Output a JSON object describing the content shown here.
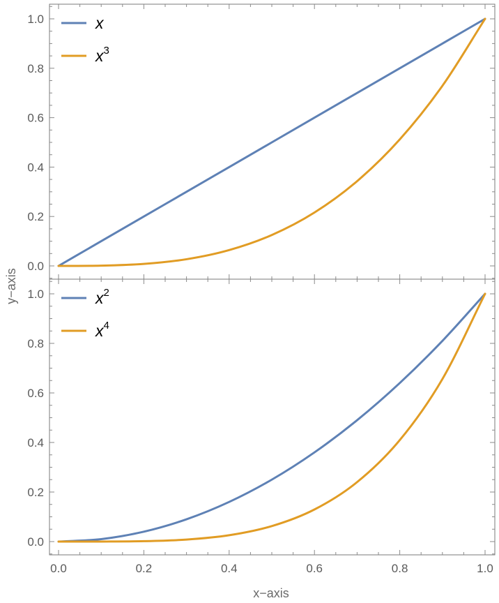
{
  "figure": {
    "xlabel": "x−axis",
    "ylabel": "y−axis"
  },
  "colors": {
    "series1": "#5e81b5",
    "series2": "#e19c24"
  },
  "chart_data": [
    {
      "type": "line",
      "xlim": [
        0,
        1
      ],
      "ylim": [
        0,
        1
      ],
      "xticks": [
        0.0,
        0.2,
        0.4,
        0.6,
        0.8,
        1.0
      ],
      "xtick_labels": [
        "0.0",
        "0.2",
        "0.4",
        "0.6",
        "0.8",
        "1.0"
      ],
      "yticks": [
        0.0,
        0.2,
        0.4,
        0.6,
        0.8,
        1.0
      ],
      "ytick_labels": [
        "0.0",
        "0.2",
        "0.4",
        "0.6",
        "0.8",
        "1.0"
      ],
      "show_xtick_labels": false,
      "legend_position": "top-left",
      "grid": false,
      "x": [
        0.0,
        0.1,
        0.2,
        0.3,
        0.4,
        0.5,
        0.6,
        0.7,
        0.8,
        0.9,
        1.0
      ],
      "series": [
        {
          "name": "x",
          "base": "x",
          "sup": "",
          "color": "#5e81b5",
          "values": [
            0.0,
            0.1,
            0.2,
            0.3,
            0.4,
            0.5,
            0.6,
            0.7,
            0.8,
            0.9,
            1.0
          ]
        },
        {
          "name": "x3",
          "base": "x",
          "sup": "3",
          "color": "#e19c24",
          "values": [
            0.0,
            0.001,
            0.008,
            0.027,
            0.064,
            0.125,
            0.216,
            0.343,
            0.512,
            0.729,
            1.0
          ]
        }
      ]
    },
    {
      "type": "line",
      "xlim": [
        0,
        1
      ],
      "ylim": [
        0,
        1
      ],
      "xticks": [
        0.0,
        0.2,
        0.4,
        0.6,
        0.8,
        1.0
      ],
      "xtick_labels": [
        "0.0",
        "0.2",
        "0.4",
        "0.6",
        "0.8",
        "1.0"
      ],
      "yticks": [
        0.0,
        0.2,
        0.4,
        0.6,
        0.8,
        1.0
      ],
      "ytick_labels": [
        "0.0",
        "0.2",
        "0.4",
        "0.6",
        "0.8",
        "1.0"
      ],
      "show_xtick_labels": true,
      "legend_position": "top-left",
      "grid": false,
      "x": [
        0.0,
        0.1,
        0.2,
        0.3,
        0.4,
        0.5,
        0.6,
        0.7,
        0.8,
        0.9,
        1.0
      ],
      "series": [
        {
          "name": "x2",
          "base": "x",
          "sup": "2",
          "color": "#5e81b5",
          "values": [
            0.0,
            0.01,
            0.04,
            0.09,
            0.16,
            0.25,
            0.36,
            0.49,
            0.64,
            0.81,
            1.0
          ]
        },
        {
          "name": "x4",
          "base": "x",
          "sup": "4",
          "color": "#e19c24",
          "values": [
            0.0,
            0.0001,
            0.0016,
            0.0081,
            0.0256,
            0.0625,
            0.1296,
            0.2401,
            0.4096,
            0.6561,
            1.0
          ]
        }
      ]
    }
  ]
}
